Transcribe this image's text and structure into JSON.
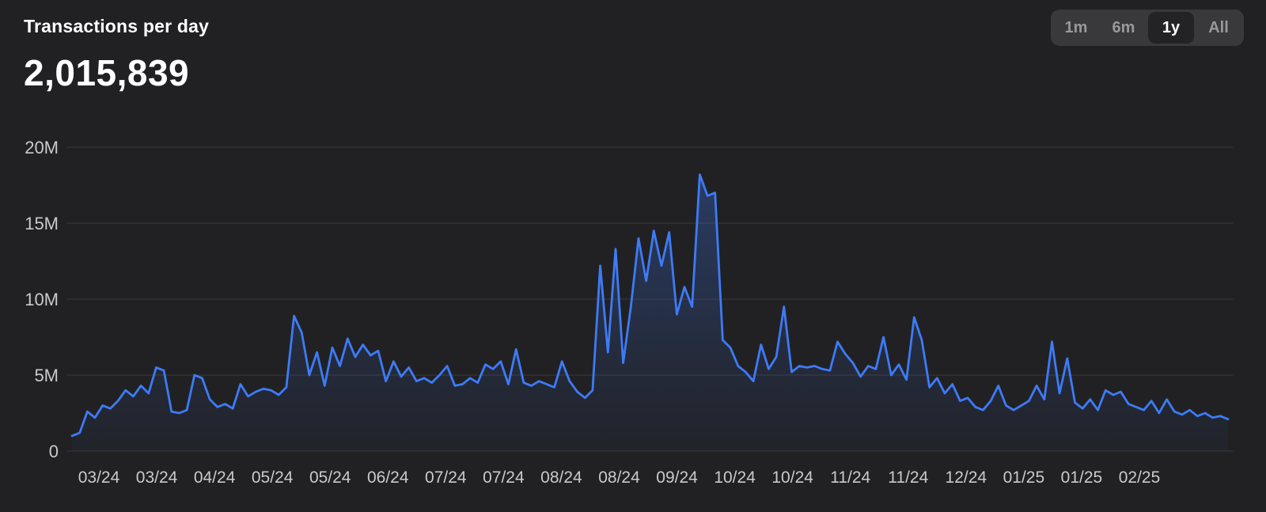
{
  "header": {
    "title": "Transactions per day",
    "current_value": "2,015,839"
  },
  "time_range": {
    "options": [
      {
        "label": "1m",
        "active": false
      },
      {
        "label": "6m",
        "active": false
      },
      {
        "label": "1y",
        "active": true
      },
      {
        "label": "All",
        "active": false
      }
    ]
  },
  "colors": {
    "background": "#212124",
    "accent_blue": "#3d7bf7",
    "grid": "#3a3a3d",
    "axis_text": "#c9c9ce",
    "segment_bg": "#39393c",
    "segment_active_bg": "#232325"
  },
  "chart_data": {
    "type": "area",
    "title": "Transactions per day",
    "unit": "millions",
    "ylim": [
      0,
      20
    ],
    "grid": "horizontal",
    "legend": "none",
    "yticks": [
      {
        "value": 0,
        "label": "0"
      },
      {
        "value": 5,
        "label": "5M"
      },
      {
        "value": 10,
        "label": "10M"
      },
      {
        "value": 15,
        "label": "15M"
      },
      {
        "value": 20,
        "label": "20M"
      }
    ],
    "xticks": [
      "03/24",
      "03/24",
      "04/24",
      "05/24",
      "05/24",
      "06/24",
      "07/24",
      "07/24",
      "08/24",
      "08/24",
      "09/24",
      "10/24",
      "10/24",
      "11/24",
      "11/24",
      "12/24",
      "01/25",
      "01/25",
      "02/25"
    ],
    "series": [
      {
        "name": "Transactions per day (millions)",
        "values": [
          1.0,
          1.2,
          2.6,
          2.2,
          3.0,
          2.8,
          3.3,
          4.0,
          3.6,
          4.3,
          3.8,
          5.5,
          5.3,
          2.6,
          2.5,
          2.7,
          5.0,
          4.8,
          3.4,
          2.9,
          3.1,
          2.8,
          4.4,
          3.6,
          3.9,
          4.1,
          4.0,
          3.7,
          4.2,
          8.9,
          7.8,
          5.0,
          6.5,
          4.3,
          6.8,
          5.6,
          7.4,
          6.2,
          7.0,
          6.3,
          6.6,
          4.6,
          5.9,
          4.9,
          5.5,
          4.6,
          4.8,
          4.5,
          5.0,
          5.6,
          4.3,
          4.4,
          4.8,
          4.5,
          5.7,
          5.4,
          5.9,
          4.4,
          6.7,
          4.5,
          4.3,
          4.6,
          4.4,
          4.2,
          5.9,
          4.6,
          3.9,
          3.5,
          4.0,
          12.2,
          6.5,
          13.3,
          5.8,
          9.5,
          14.0,
          11.2,
          14.5,
          12.2,
          14.4,
          9.0,
          10.8,
          9.5,
          18.2,
          16.8,
          17.0,
          7.3,
          6.8,
          5.6,
          5.2,
          4.6,
          7.0,
          5.4,
          6.2,
          9.5,
          5.2,
          5.6,
          5.5,
          5.6,
          5.4,
          5.3,
          7.2,
          6.4,
          5.8,
          4.9,
          5.6,
          5.4,
          7.5,
          5.0,
          5.7,
          4.7,
          8.8,
          7.3,
          4.2,
          4.8,
          3.8,
          4.4,
          3.3,
          3.5,
          2.9,
          2.7,
          3.3,
          4.3,
          3.0,
          2.7,
          3.0,
          3.3,
          4.3,
          3.4,
          7.2,
          3.8,
          6.1,
          3.2,
          2.8,
          3.4,
          2.7,
          4.0,
          3.7,
          3.9,
          3.1,
          2.9,
          2.7,
          3.3,
          2.5,
          3.4,
          2.6,
          2.4,
          2.7,
          2.3,
          2.5,
          2.2,
          2.3,
          2.1
        ]
      }
    ]
  }
}
